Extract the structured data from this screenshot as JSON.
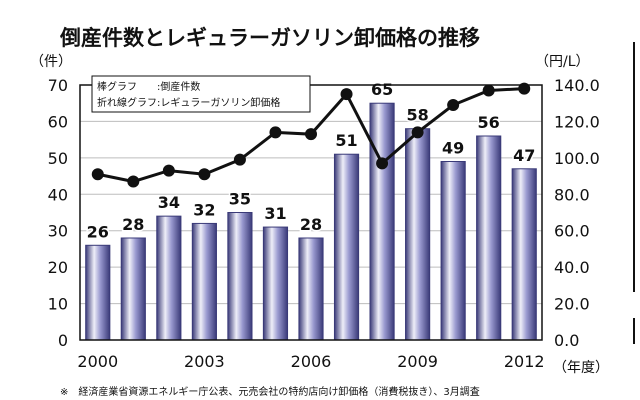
{
  "chart_data": {
    "type": "bar",
    "title": "倒産件数とレギュラーガソリン卸価格の推移",
    "y_unit_left": "（件）",
    "y_unit_right": "（円/L）",
    "x_unit": "（年度）",
    "legend": [
      "棒グラフ　　:倒産件数",
      "折れ線グラフ:レギュラーガソリン卸価格"
    ],
    "legend_position": "top-left",
    "grid": true,
    "x": [
      2000,
      2001,
      2002,
      2003,
      2004,
      2005,
      2006,
      2007,
      2008,
      2009,
      2010,
      2011,
      2012
    ],
    "x_tick_labels": [
      "2000",
      "2003",
      "2006",
      "2009",
      "2012"
    ],
    "x_tick_years": [
      2000,
      2003,
      2006,
      2009,
      2012
    ],
    "y_left_ticks": [
      "0",
      "10",
      "20",
      "30",
      "40",
      "50",
      "60",
      "70"
    ],
    "y_left_lim": [
      0,
      70
    ],
    "y_right_ticks": [
      "0.0",
      "20.0",
      "40.0",
      "60.0",
      "80.0",
      "100.0",
      "120.0",
      "140.0"
    ],
    "y_right_lim": [
      0,
      140
    ],
    "series": [
      {
        "type": "bar",
        "axis": "left",
        "values": [
          26,
          28,
          34,
          32,
          35,
          31,
          28,
          51,
          65,
          58,
          49,
          56,
          47
        ],
        "labels": [
          "26",
          "28",
          "34",
          "32",
          "35",
          "31",
          "28",
          "51",
          "65",
          "58",
          "49",
          "56",
          "47"
        ]
      },
      {
        "type": "line",
        "axis": "right",
        "values": [
          91,
          87,
          93,
          91,
          99,
          114,
          113,
          135,
          97,
          114,
          129,
          137,
          138
        ]
      }
    ],
    "note": "※　経済産業省資源エネルギー庁公表、元売会社の特約店向け卸価格（消費税抜き）、3月調査"
  },
  "colors": {
    "bar_top": "#eeeef8",
    "bar_mid": "#9a9ad0",
    "bar_edge": "#3a3a78",
    "line": "#111111",
    "grid": "#bdbdbd"
  }
}
